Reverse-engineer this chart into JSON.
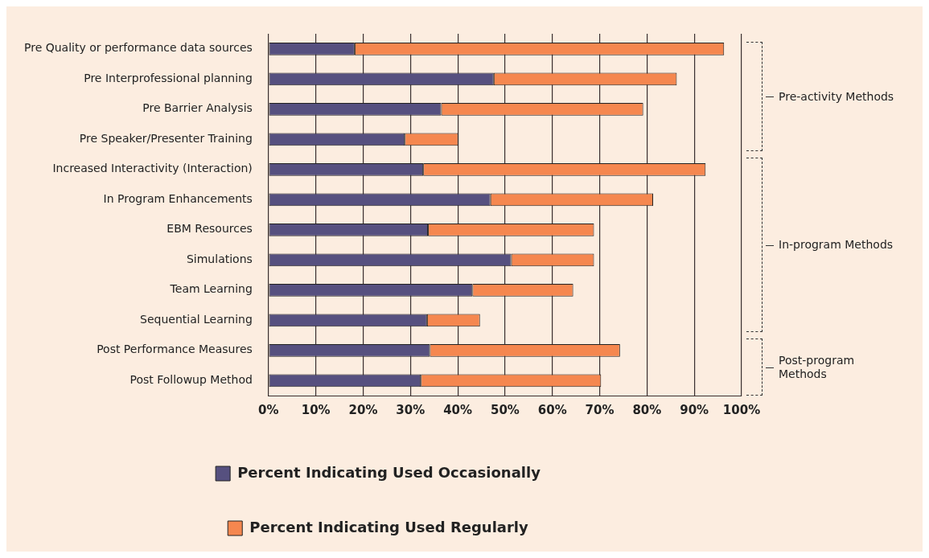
{
  "chart_data": {
    "type": "bar",
    "orientation": "horizontal",
    "stacked": true,
    "categories": [
      "Pre Quality or performance data sources",
      "Pre Interprofessional planning",
      "Pre Barrier Analysis",
      "Pre Speaker/Presenter Training",
      "Increased Interactivity (Interaction)",
      "In Program Enhancements",
      "EBM Resources",
      "Simulations",
      "Team Learning",
      "Sequential Learning",
      "Post Performance Measures",
      "Post Followup Method"
    ],
    "series": [
      {
        "name": "Percent Indicating Used Occasionally",
        "color": "#56507f",
        "values": [
          18.2,
          47.6,
          36.5,
          28.8,
          32.7,
          46.9,
          33.7,
          51.3,
          43.1,
          33.5,
          34.1,
          32.2
        ]
      },
      {
        "name": "Percent Indicating Used Regularly",
        "color": "#f5874f",
        "values": [
          78.1,
          38.7,
          42.7,
          11.3,
          59.7,
          34.4,
          35.1,
          17.5,
          21.3,
          11.2,
          40.2,
          38.1
        ]
      }
    ],
    "xlim": [
      0,
      100
    ],
    "xticks": [
      {
        "value": 0,
        "label": "0%"
      },
      {
        "value": 10,
        "label": "10%"
      },
      {
        "value": 20,
        "label": "20%"
      },
      {
        "value": 30,
        "label": "30%"
      },
      {
        "value": 40,
        "label": "40%"
      },
      {
        "value": 50,
        "label": "50%"
      },
      {
        "value": 60,
        "label": "60%"
      },
      {
        "value": 70,
        "label": "70%"
      },
      {
        "value": 80,
        "label": "80%"
      },
      {
        "value": 90,
        "label": "90%"
      },
      {
        "value": 100,
        "label": "100%"
      }
    ],
    "grid": "x",
    "legend": "bottom",
    "annotations": [
      "Pre-activity Methods",
      "In-program Methods",
      "Post-program Methods"
    ]
  }
}
